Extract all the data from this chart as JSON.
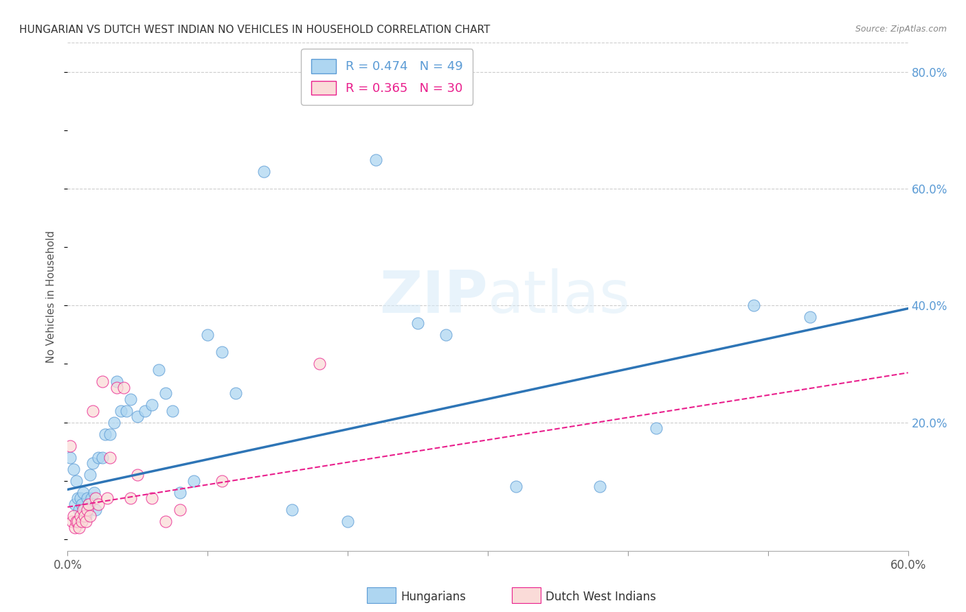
{
  "title": "HUNGARIAN VS DUTCH WEST INDIAN NO VEHICLES IN HOUSEHOLD CORRELATION CHART",
  "source": "Source: ZipAtlas.com",
  "ylabel": "No Vehicles in Household",
  "watermark": "ZIPatlas",
  "xlim": [
    0.0,
    0.6
  ],
  "ylim": [
    -0.02,
    0.85
  ],
  "xticks": [
    0.0,
    0.1,
    0.2,
    0.3,
    0.4,
    0.5,
    0.6
  ],
  "xticklabels": [
    "0.0%",
    "",
    "",
    "",
    "",
    "",
    "60.0%"
  ],
  "yticks_right": [
    0.0,
    0.2,
    0.4,
    0.6,
    0.8
  ],
  "ytick_right_labels": [
    "",
    "20.0%",
    "40.0%",
    "60.0%",
    "80.0%"
  ],
  "blue_r": 0.474,
  "blue_n": 49,
  "pink_r": 0.365,
  "pink_n": 30,
  "blue_x": [
    0.002,
    0.004,
    0.005,
    0.006,
    0.007,
    0.008,
    0.009,
    0.01,
    0.011,
    0.012,
    0.013,
    0.014,
    0.015,
    0.016,
    0.017,
    0.018,
    0.019,
    0.02,
    0.022,
    0.025,
    0.027,
    0.03,
    0.033,
    0.035,
    0.038,
    0.042,
    0.045,
    0.05,
    0.055,
    0.06,
    0.065,
    0.07,
    0.075,
    0.08,
    0.09,
    0.1,
    0.11,
    0.12,
    0.14,
    0.16,
    0.2,
    0.22,
    0.25,
    0.27,
    0.32,
    0.38,
    0.42,
    0.49,
    0.53
  ],
  "blue_y": [
    0.14,
    0.12,
    0.06,
    0.1,
    0.07,
    0.05,
    0.07,
    0.06,
    0.08,
    0.05,
    0.04,
    0.07,
    0.06,
    0.11,
    0.07,
    0.13,
    0.08,
    0.05,
    0.14,
    0.14,
    0.18,
    0.18,
    0.2,
    0.27,
    0.22,
    0.22,
    0.24,
    0.21,
    0.22,
    0.23,
    0.29,
    0.25,
    0.22,
    0.08,
    0.1,
    0.35,
    0.32,
    0.25,
    0.63,
    0.05,
    0.03,
    0.65,
    0.37,
    0.35,
    0.09,
    0.09,
    0.19,
    0.4,
    0.38
  ],
  "pink_x": [
    0.002,
    0.003,
    0.004,
    0.005,
    0.006,
    0.007,
    0.008,
    0.009,
    0.01,
    0.011,
    0.012,
    0.013,
    0.014,
    0.015,
    0.016,
    0.018,
    0.02,
    0.022,
    0.025,
    0.028,
    0.03,
    0.035,
    0.04,
    0.045,
    0.05,
    0.06,
    0.07,
    0.08,
    0.11,
    0.18
  ],
  "pink_y": [
    0.16,
    0.03,
    0.04,
    0.02,
    0.03,
    0.03,
    0.02,
    0.04,
    0.03,
    0.05,
    0.04,
    0.03,
    0.05,
    0.06,
    0.04,
    0.22,
    0.07,
    0.06,
    0.27,
    0.07,
    0.14,
    0.26,
    0.26,
    0.07,
    0.11,
    0.07,
    0.03,
    0.05,
    0.1,
    0.3
  ],
  "blue_line_x0": 0.0,
  "blue_line_x1": 0.6,
  "blue_line_y0": 0.085,
  "blue_line_y1": 0.395,
  "pink_line_x0": 0.0,
  "pink_line_x1": 0.6,
  "pink_line_y0": 0.055,
  "pink_line_y1": 0.285,
  "background_color": "#FFFFFF",
  "grid_color": "#CCCCCC",
  "title_color": "#333333",
  "right_label_color": "#5B9BD5",
  "blue_scatter_face": "#AED6F1",
  "blue_scatter_edge": "#5B9BD5",
  "pink_scatter_face": "#FADBD8",
  "pink_scatter_edge": "#E91E8C",
  "blue_line_color": "#2E75B6",
  "pink_line_color": "#E91E8C"
}
